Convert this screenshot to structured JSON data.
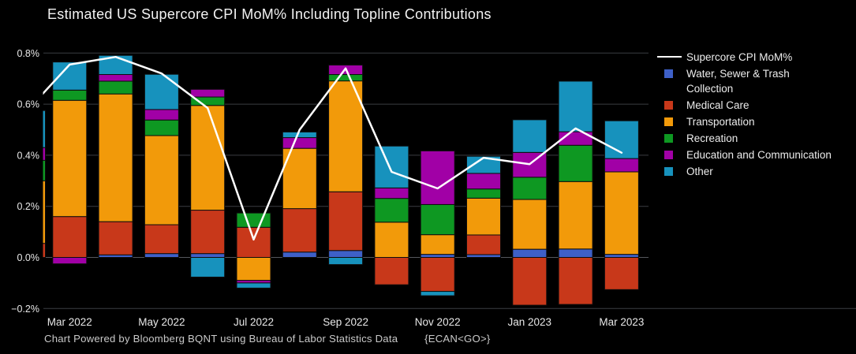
{
  "title": "Estimated US Supercore CPI MoM% Including Topline Contributions",
  "footer": {
    "text": "Chart Powered by Bloomberg BQNT using Bureau of Labor Statistics Data",
    "code": "{ECAN<GO>}"
  },
  "colors": {
    "background": "#000000",
    "title_text": "#f2f2f2",
    "axis_text": "#e8e8e8",
    "footer_text": "#c9c9c9",
    "grid": "#3a3d42",
    "grid_zero": "#54575c",
    "line": "#ffffff",
    "water": "#3e60c8",
    "medical": "#c8381a",
    "transportation": "#f29a0a",
    "recreation": "#0e9822",
    "education": "#a100a6",
    "other": "#1792bd"
  },
  "y_axis": {
    "ticks": [
      {
        "value": 0.8,
        "label": "0.8%"
      },
      {
        "value": 0.6,
        "label": "0.6%"
      },
      {
        "value": 0.4,
        "label": "0.4%"
      },
      {
        "value": 0.2,
        "label": "0.2%"
      },
      {
        "value": 0.0,
        "label": "0.0%"
      },
      {
        "value": -0.2,
        "label": "−0.2%"
      }
    ]
  },
  "x_axis": {
    "tick_labels": [
      "Mar 2022",
      "May 2022",
      "Jul 2022",
      "Sep 2022",
      "Nov 2022",
      "Jan 2023",
      "Mar 2023"
    ],
    "tick_category_indexes": [
      1,
      3,
      5,
      7,
      9,
      11,
      13
    ]
  },
  "legend": {
    "items": [
      {
        "id": "supercore-cpi-mom",
        "marker": "line",
        "color_key": "line",
        "label": "Supercore CPI MoM%"
      },
      {
        "id": "water-sewer-trash",
        "marker": "swatch",
        "color_key": "water",
        "label": "Water, Sewer & Trash\nCollection"
      },
      {
        "id": "medical-care",
        "marker": "swatch",
        "color_key": "medical",
        "label": "Medical Care"
      },
      {
        "id": "transportation",
        "marker": "swatch",
        "color_key": "transportation",
        "label": "Transportation"
      },
      {
        "id": "recreation",
        "marker": "swatch",
        "color_key": "recreation",
        "label": "Recreation"
      },
      {
        "id": "education-communication",
        "marker": "swatch",
        "color_key": "education",
        "label": "Education and Communication"
      },
      {
        "id": "other",
        "marker": "swatch",
        "color_key": "other",
        "label": "Other"
      }
    ]
  },
  "chart_data": {
    "type": "bar",
    "subtype": "stacked_bars_with_line_overlay",
    "title": "Estimated US Supercore CPI MoM% Including Topline Contributions",
    "xlabel": "",
    "ylabel": "",
    "unit": "% MoM contribution",
    "ylim": [
      -0.2,
      0.8
    ],
    "grid": "horizontal",
    "legend_position": "right",
    "categories": [
      "Feb 2022",
      "Mar 2022",
      "Apr 2022",
      "May 2022",
      "Jun 2022",
      "Jul 2022",
      "Aug 2022",
      "Sep 2022",
      "Oct 2022",
      "Nov 2022",
      "Dec 2022",
      "Jan 2023",
      "Feb 2023",
      "Mar 2023"
    ],
    "first_bar_partially_clipped": true,
    "series": [
      {
        "name": "Water, Sewer & Trash Collection",
        "color_key": "water",
        "values": [
          0.0,
          0.0,
          0.01,
          0.015,
          0.015,
          0.0,
          0.021,
          0.027,
          0.0,
          0.012,
          0.011,
          0.032,
          0.033,
          0.012
        ]
      },
      {
        "name": "Medical Care",
        "color_key": "medical",
        "values": [
          0.055,
          0.16,
          0.13,
          0.113,
          0.17,
          0.118,
          0.17,
          0.23,
          -0.107,
          -0.133,
          0.077,
          -0.187,
          -0.184,
          -0.126
        ]
      },
      {
        "name": "Transportation",
        "color_key": "transportation",
        "values": [
          0.245,
          0.455,
          0.5,
          0.349,
          0.41,
          -0.09,
          0.236,
          0.434,
          0.138,
          0.077,
          0.144,
          0.195,
          0.264,
          0.323
        ]
      },
      {
        "name": "Recreation",
        "color_key": "recreation",
        "values": [
          0.08,
          0.04,
          0.05,
          0.061,
          0.033,
          0.056,
          0.0,
          0.025,
          0.093,
          0.118,
          0.036,
          0.087,
          0.142,
          0.0
        ]
      },
      {
        "name": "Education and Communication",
        "color_key": "education",
        "values": [
          0.05,
          -0.025,
          0.026,
          0.041,
          0.03,
          -0.01,
          0.042,
          0.037,
          0.041,
          0.21,
          0.061,
          0.097,
          0.053,
          0.052
        ]
      },
      {
        "name": "Other",
        "color_key": "other",
        "values": [
          0.145,
          0.11,
          0.075,
          0.138,
          -0.077,
          -0.02,
          0.022,
          -0.028,
          0.164,
          -0.017,
          0.067,
          0.128,
          0.198,
          0.148
        ]
      }
    ],
    "line_series": {
      "name": "Supercore CPI MoM%",
      "values": [
        0.58,
        0.755,
        0.785,
        0.72,
        0.585,
        0.07,
        0.5,
        0.74,
        0.335,
        0.27,
        0.39,
        0.365,
        0.505,
        0.41
      ]
    }
  }
}
